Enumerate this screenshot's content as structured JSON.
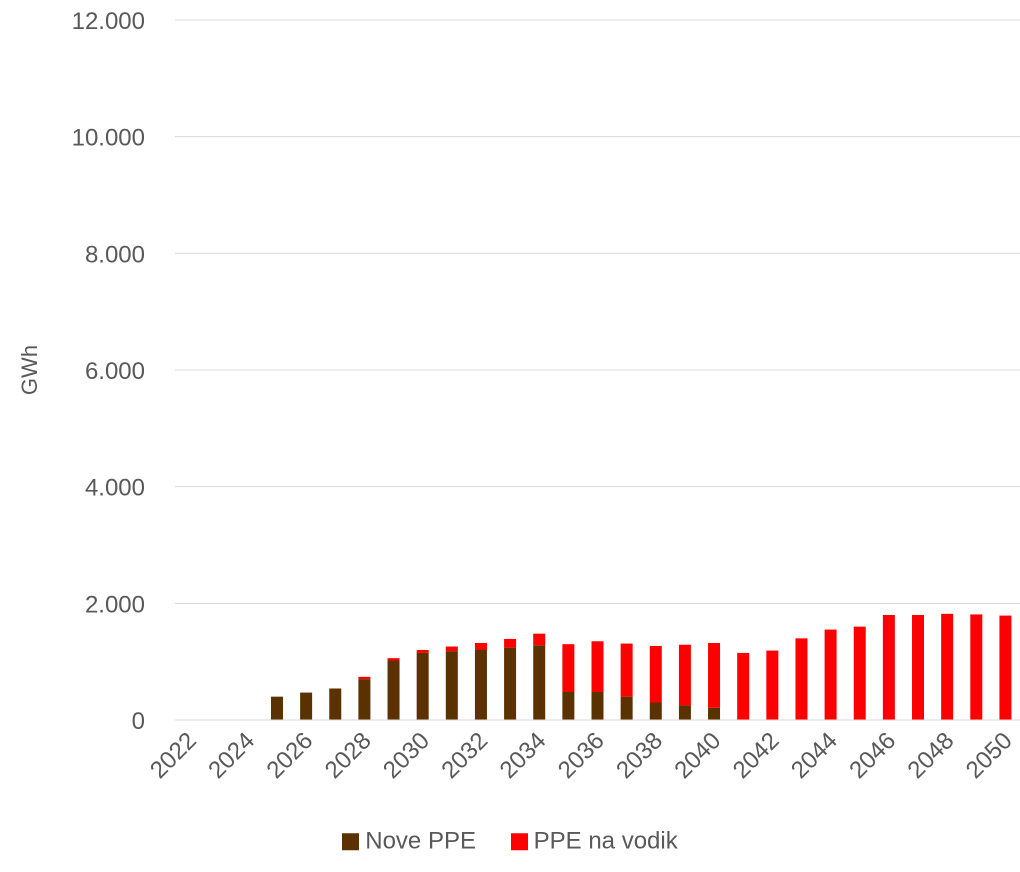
{
  "chart_data": {
    "type": "bar",
    "stacked": true,
    "title": "",
    "xlabel": "",
    "ylabel": "GWh",
    "ylim": [
      0,
      12000
    ],
    "y_ticks": [
      0,
      2000,
      4000,
      6000,
      8000,
      10000,
      12000
    ],
    "y_tick_labels": [
      "0",
      "2.000",
      "4.000",
      "6.000",
      "8.000",
      "10.000",
      "12.000"
    ],
    "x_tick_labels": [
      "2022",
      "2024",
      "2026",
      "2028",
      "2030",
      "2032",
      "2034",
      "2036",
      "2038",
      "2040",
      "2042",
      "2044",
      "2046",
      "2048",
      "2050"
    ],
    "categories": [
      "2022",
      "2023",
      "2024",
      "2025",
      "2026",
      "2027",
      "2028",
      "2029",
      "2030",
      "2031",
      "2032",
      "2033",
      "2034",
      "2035",
      "2036",
      "2037",
      "2038",
      "2039",
      "2040",
      "2041",
      "2042",
      "2043",
      "2044",
      "2045",
      "2046",
      "2047",
      "2048",
      "2049",
      "2050"
    ],
    "series": [
      {
        "name": "Nove PPE",
        "color": "#5C3100",
        "values": [
          0,
          0,
          0,
          400,
          470,
          540,
          700,
          1020,
          1150,
          1180,
          1200,
          1240,
          1280,
          480,
          480,
          400,
          300,
          250,
          210,
          0,
          0,
          0,
          0,
          0,
          0,
          0,
          0,
          0,
          0
        ]
      },
      {
        "name": "PPE na vodik",
        "color": "#FF0000",
        "values": [
          0,
          0,
          0,
          0,
          0,
          0,
          40,
          40,
          50,
          80,
          120,
          150,
          200,
          820,
          870,
          910,
          970,
          1040,
          1110,
          1150,
          1190,
          1400,
          1550,
          1600,
          1800,
          1800,
          1820,
          1810,
          1790
        ]
      }
    ],
    "grid": true,
    "legend_position": "bottom"
  }
}
